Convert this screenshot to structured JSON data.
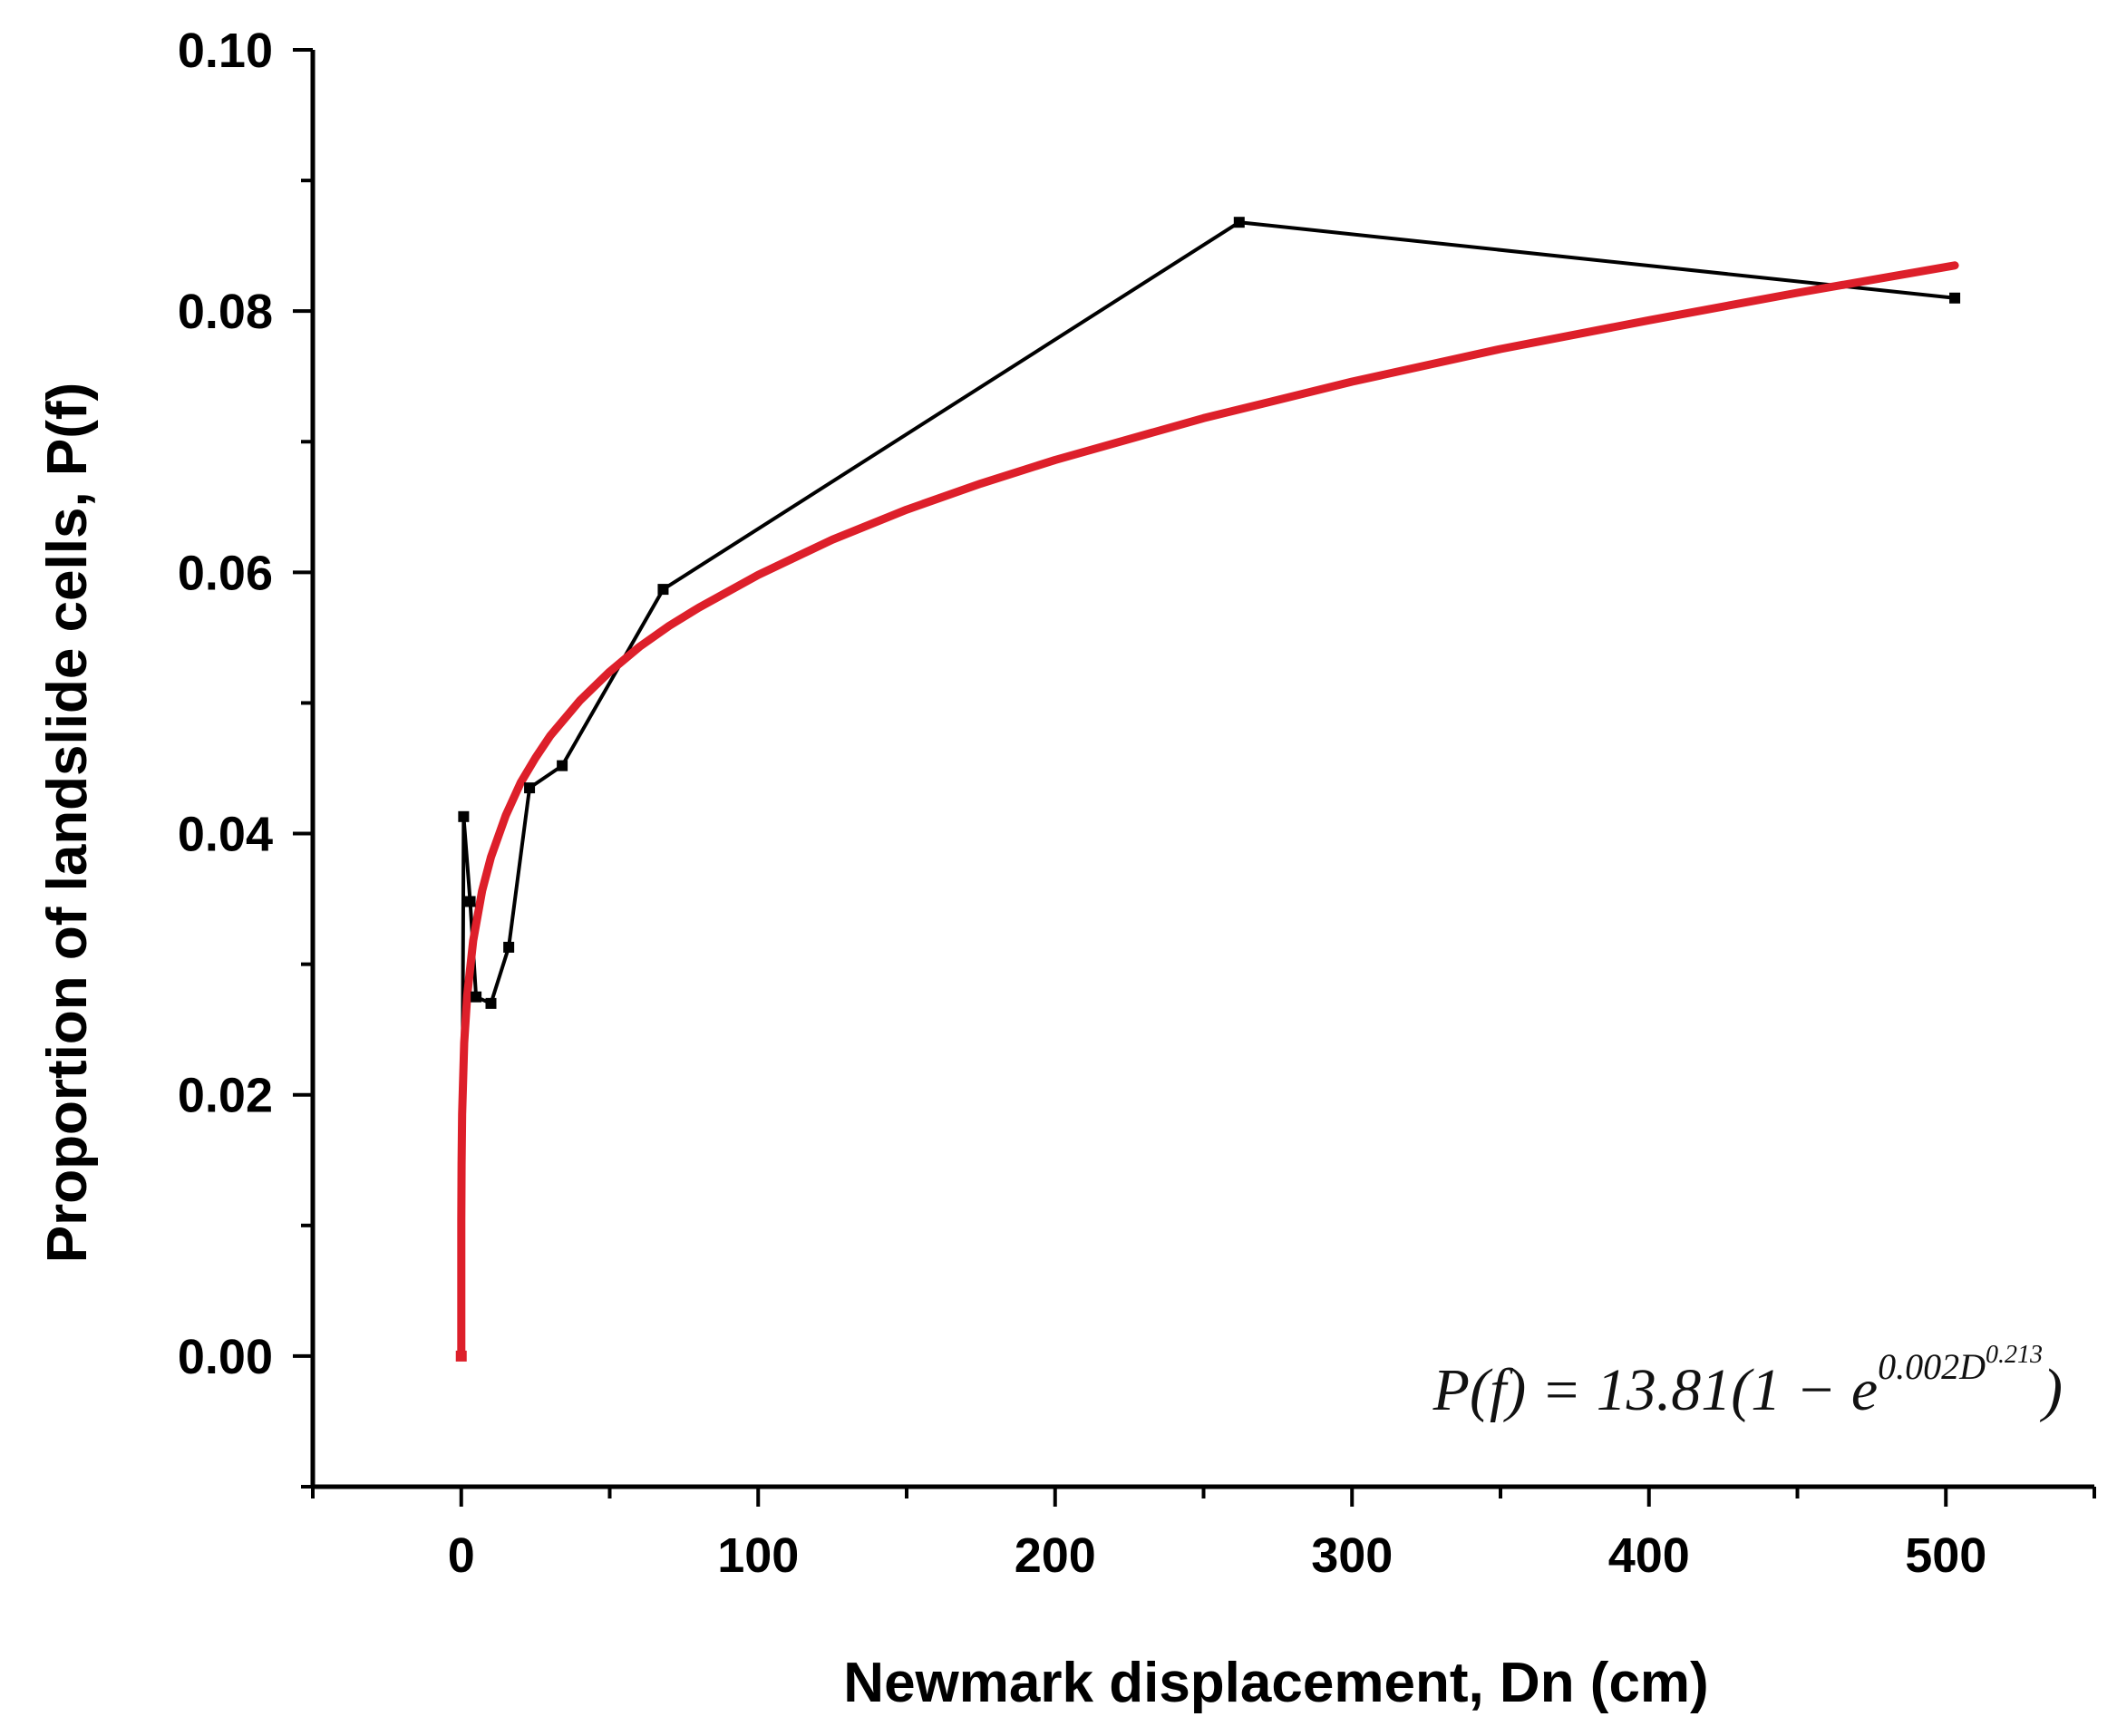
{
  "chart_data": {
    "type": "line",
    "xlabel": "Newmark displacement, Dn (cm)",
    "ylabel": "Proportion of landslide cells, P(f)",
    "xlim": [
      -50,
      550
    ],
    "ylim": [
      -0.01,
      0.1
    ],
    "x_ticks": [
      "0",
      "100",
      "200",
      "300",
      "400",
      "500"
    ],
    "y_ticks": [
      "0.00",
      "0.02",
      "0.04",
      "0.06",
      "0.08",
      "0.10"
    ],
    "x_tick_values": [
      0,
      100,
      200,
      300,
      400,
      500
    ],
    "y_tick_values": [
      0.0,
      0.02,
      0.04,
      0.06,
      0.08,
      0.1
    ],
    "grid": false,
    "series": [
      {
        "role": "observed",
        "color": "#000000",
        "marker": "square",
        "x": [
          0,
          0.8,
          3,
          5,
          10,
          16,
          23,
          34,
          68,
          262,
          503
        ],
        "y": [
          0.0,
          0.0413,
          0.0348,
          0.0275,
          0.027,
          0.0313,
          0.0435,
          0.0452,
          0.0587,
          0.0868,
          0.081
        ]
      },
      {
        "role": "fit",
        "color": "#dd1f2a",
        "marker": "none",
        "x": [
          0,
          0.02,
          0.1,
          0.3,
          1,
          2,
          4,
          7,
          10,
          15,
          20,
          25,
          30,
          40,
          50,
          60,
          70,
          80,
          100,
          125,
          150,
          175,
          200,
          250,
          300,
          350,
          400,
          450,
          503
        ],
        "y": [
          0.0,
          0.0104,
          0.0147,
          0.0185,
          0.024,
          0.0276,
          0.0318,
          0.0356,
          0.0382,
          0.0414,
          0.0439,
          0.0458,
          0.0475,
          0.0502,
          0.0524,
          0.0543,
          0.0559,
          0.0573,
          0.0598,
          0.0625,
          0.0648,
          0.0668,
          0.0686,
          0.0718,
          0.0746,
          0.0771,
          0.0793,
          0.0814,
          0.0835
        ]
      }
    ],
    "annotation": {
      "lhs": "P(f) = 13.81(1 − e",
      "exp_base": "0.002D",
      "exp_power": "0.213",
      "close": ")"
    }
  }
}
